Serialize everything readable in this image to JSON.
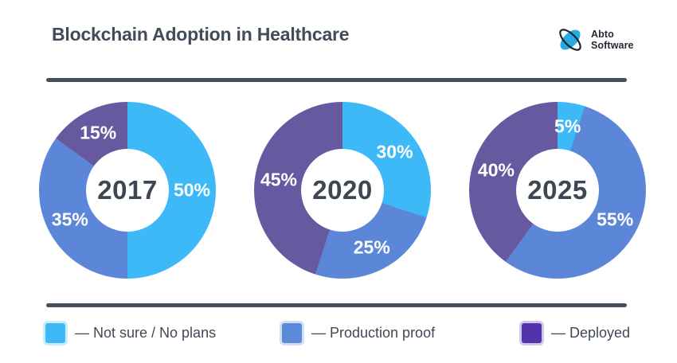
{
  "header": {
    "title": "Blockchain Adoption in Healthcare",
    "logo": {
      "name": "Abto Software",
      "line1": "Abto",
      "line2": "Software",
      "mark_blue": "#29abe2",
      "mark_dark": "#1c2430"
    }
  },
  "colors": {
    "background": "#ffffff",
    "title_text": "#414b5a",
    "divider": "#454e5b",
    "center_year_text": "#3d4753",
    "slice_label_text": "#ffffff",
    "legend_text": "#3f4956"
  },
  "chart_data": {
    "type": "pie",
    "variant": "donut-multiples",
    "title": "Blockchain Adoption in Healthcare",
    "unit": "%",
    "start_angle": "top",
    "direction": "clockwise",
    "categories": [
      "Not sure / No plans",
      "Production proof",
      "Deployed"
    ],
    "slice_colors": [
      "#3db9f7",
      "#5c87d9",
      "#67599f"
    ],
    "donuts": [
      {
        "center_label": "2017",
        "values": [
          50,
          35,
          15
        ],
        "value_labels": [
          "50%",
          "35%",
          "15%"
        ]
      },
      {
        "center_label": "2020",
        "values": [
          30,
          25,
          45
        ],
        "value_labels": [
          "30%",
          "25%",
          "45%"
        ]
      },
      {
        "center_label": "2025",
        "values": [
          5,
          55,
          40
        ],
        "value_labels": [
          "5%",
          "55%",
          "40%"
        ]
      }
    ],
    "legend": {
      "position": "bottom",
      "items": [
        {
          "display": "— Not sure / No plans",
          "color": "#3db9f7"
        },
        {
          "display": "— Production proof",
          "color": "#5b8ad9"
        },
        {
          "display": "— Deployed",
          "color": "#5233ac"
        }
      ]
    }
  }
}
